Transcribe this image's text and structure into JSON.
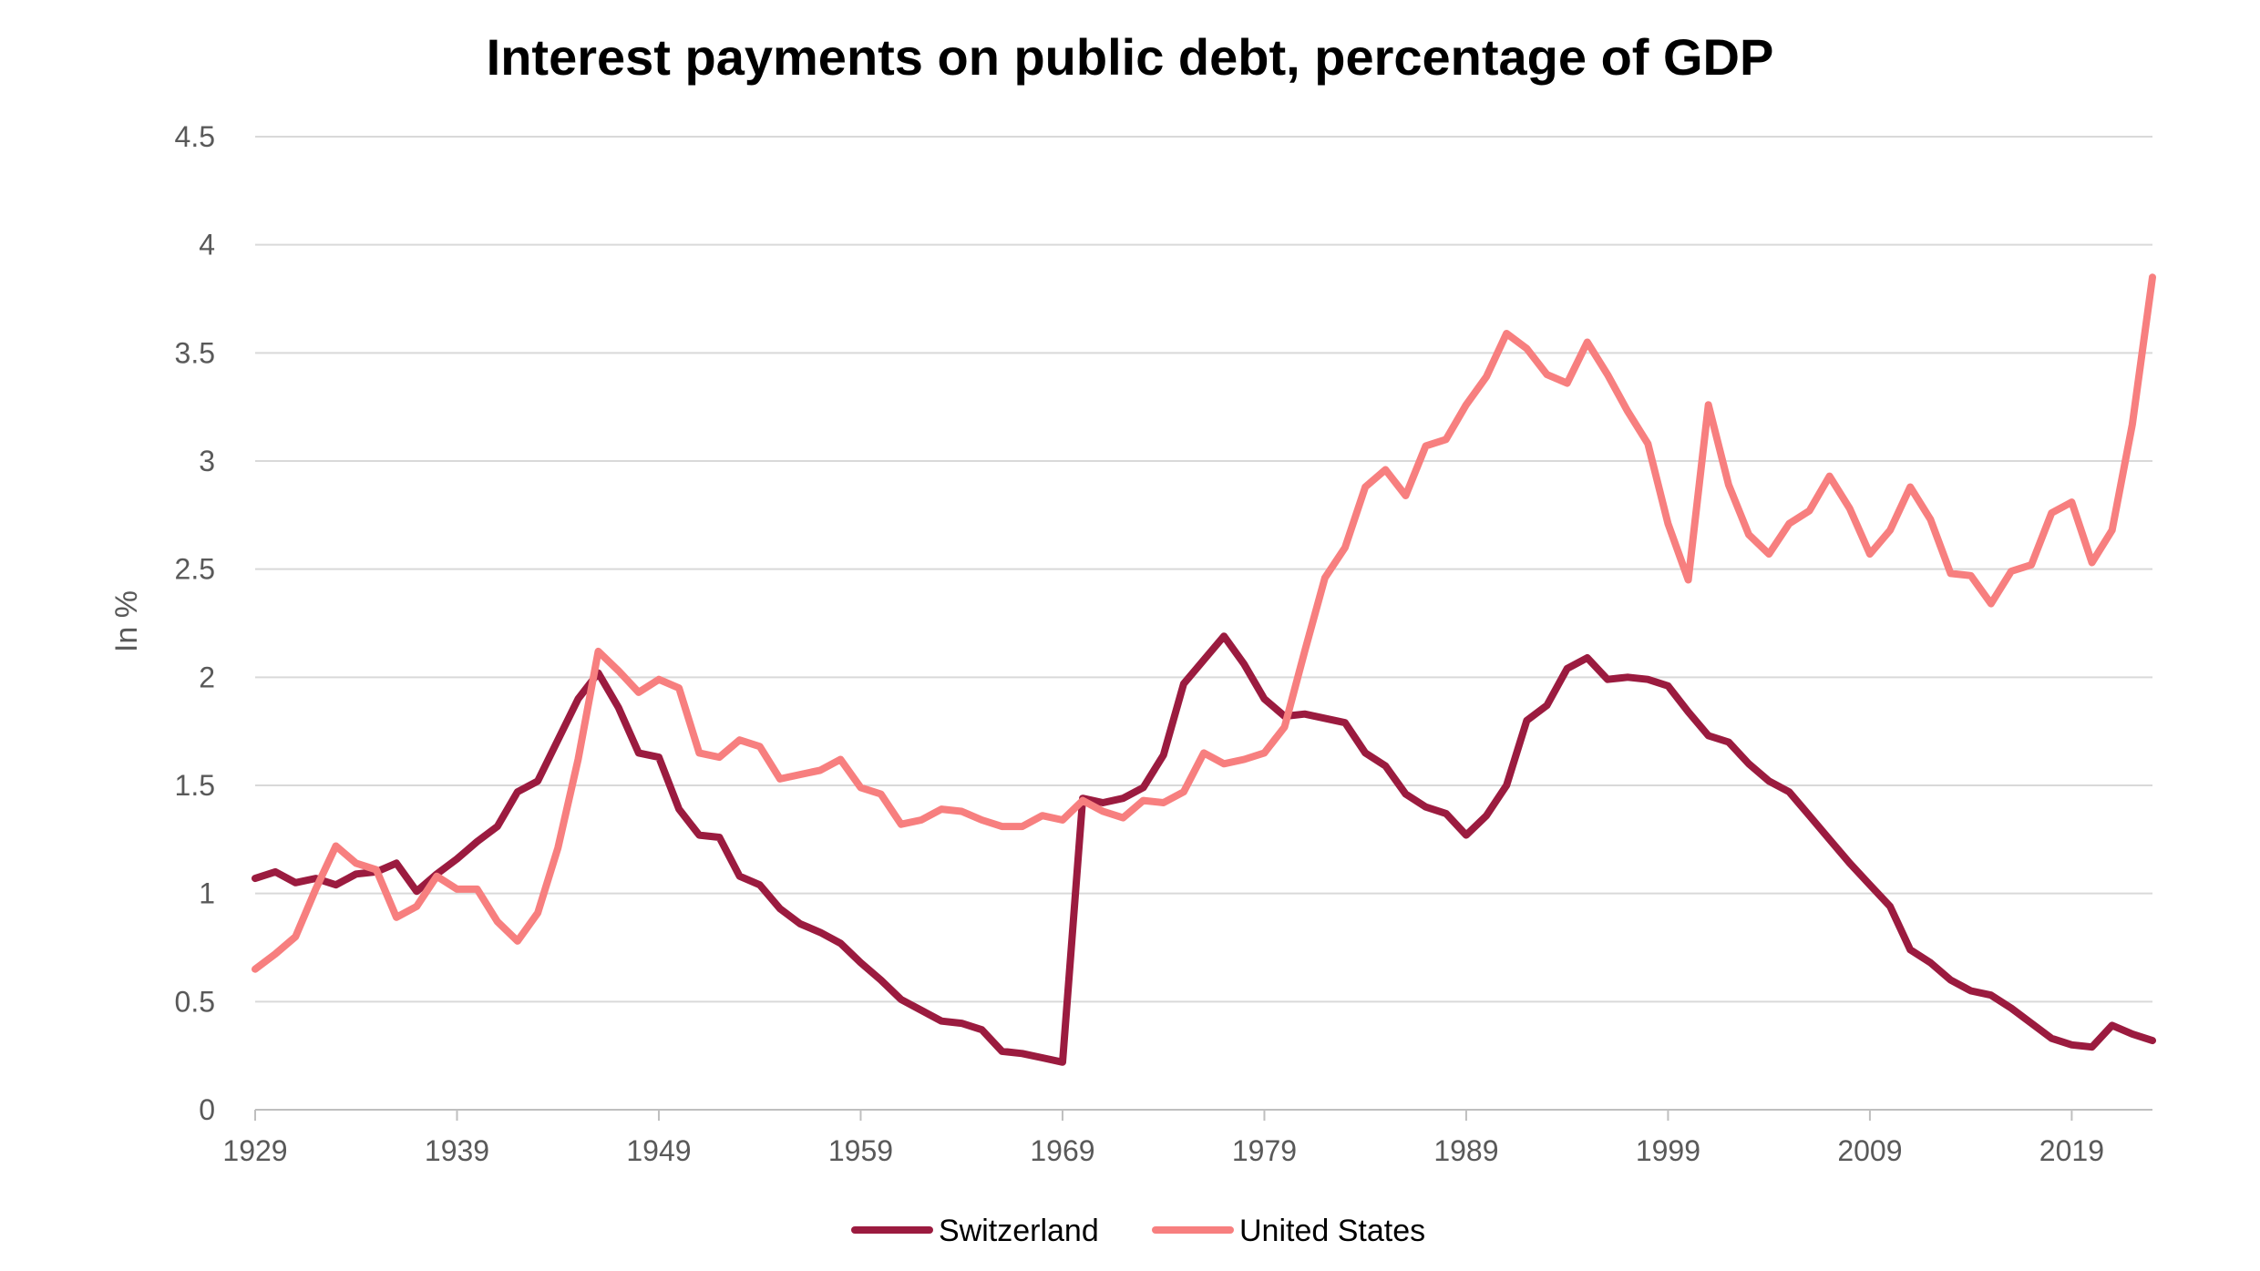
{
  "chart_data": {
    "type": "line",
    "title": "Interest payments on public debt, percentage of GDP",
    "xlabel": "",
    "ylabel": "In %",
    "ylim": [
      0,
      4.5
    ],
    "yticks": [
      "0",
      "0.5",
      "1",
      "1.5",
      "2",
      "2.5",
      "3",
      "3.5",
      "4",
      "4.5"
    ],
    "xlim": [
      1929,
      2023
    ],
    "xticks": [
      "1929",
      "1939",
      "1949",
      "1959",
      "1969",
      "1979",
      "1989",
      "1999",
      "2009",
      "2019"
    ],
    "grid": true,
    "legend_position": "bottom",
    "x": [
      1929,
      1930,
      1931,
      1932,
      1933,
      1934,
      1935,
      1936,
      1937,
      1938,
      1939,
      1940,
      1941,
      1942,
      1943,
      1944,
      1945,
      1946,
      1947,
      1948,
      1949,
      1950,
      1951,
      1952,
      1953,
      1954,
      1955,
      1956,
      1957,
      1958,
      1959,
      1960,
      1961,
      1962,
      1963,
      1964,
      1965,
      1966,
      1967,
      1968,
      1969,
      1970,
      1971,
      1972,
      1973,
      1974,
      1975,
      1976,
      1977,
      1978,
      1979,
      1980,
      1981,
      1982,
      1983,
      1984,
      1985,
      1986,
      1987,
      1988,
      1989,
      1990,
      1991,
      1992,
      1993,
      1994,
      1995,
      1996,
      1997,
      1998,
      1999,
      2000,
      2001,
      2002,
      2003,
      2004,
      2005,
      2006,
      2007,
      2008,
      2009,
      2010,
      2011,
      2012,
      2013,
      2014,
      2015,
      2016,
      2017,
      2018,
      2019,
      2020,
      2021,
      2022,
      2023
    ],
    "series": [
      {
        "name": "Switzerland",
        "color": "#9b1b3f",
        "values": [
          1.07,
          1.1,
          1.05,
          1.07,
          1.04,
          1.09,
          1.1,
          1.14,
          1.01,
          1.09,
          1.16,
          1.24,
          1.31,
          1.47,
          1.52,
          1.71,
          1.9,
          2.02,
          1.86,
          1.65,
          1.63,
          1.39,
          1.27,
          1.26,
          1.08,
          1.04,
          0.93,
          0.86,
          0.82,
          0.77,
          0.68,
          0.6,
          0.51,
          0.46,
          0.41,
          0.4,
          0.37,
          0.27,
          0.26,
          0.24,
          0.22,
          1.44,
          1.42,
          1.44,
          1.49,
          1.64,
          1.97,
          2.08,
          2.19,
          2.06,
          1.9,
          1.82,
          1.83,
          1.81,
          1.79,
          1.65,
          1.59,
          1.46,
          1.4,
          1.37,
          1.27,
          1.36,
          1.5,
          1.8,
          1.87,
          2.04,
          2.09,
          1.99,
          2.0,
          1.99,
          1.96,
          1.84,
          1.73,
          1.7,
          1.6,
          1.52,
          1.47,
          1.36,
          1.25,
          1.14,
          1.04,
          0.94,
          0.74,
          0.68,
          0.6,
          0.55,
          0.53,
          0.47,
          0.4,
          0.33,
          0.3,
          0.29,
          0.39,
          0.35,
          0.32
        ]
      },
      {
        "name": "United States",
        "color": "#f77f7f",
        "values": [
          0.65,
          0.72,
          0.8,
          1.02,
          1.22,
          1.14,
          1.11,
          0.89,
          0.94,
          1.08,
          1.02,
          1.02,
          0.87,
          0.78,
          0.91,
          1.21,
          1.62,
          2.12,
          2.03,
          1.93,
          1.99,
          1.95,
          1.65,
          1.63,
          1.71,
          1.68,
          1.53,
          1.55,
          1.57,
          1.62,
          1.49,
          1.46,
          1.32,
          1.34,
          1.39,
          1.38,
          1.34,
          1.31,
          1.31,
          1.36,
          1.34,
          1.43,
          1.38,
          1.35,
          1.43,
          1.42,
          1.47,
          1.65,
          1.6,
          1.62,
          1.65,
          1.77,
          2.12,
          2.46,
          2.6,
          2.88,
          2.96,
          2.84,
          3.07,
          3.1,
          3.26,
          3.39,
          3.59,
          3.52,
          3.4,
          3.36,
          3.55,
          3.4,
          3.23,
          3.08,
          2.71,
          2.45,
          3.26,
          2.89,
          2.66,
          2.57,
          2.71,
          2.77,
          2.93,
          2.78,
          2.57,
          2.68,
          2.88,
          2.73,
          2.48,
          2.47,
          2.34,
          2.49,
          2.52,
          2.76,
          2.81,
          2.53,
          2.68,
          3.17,
          3.85
        ]
      }
    ]
  }
}
